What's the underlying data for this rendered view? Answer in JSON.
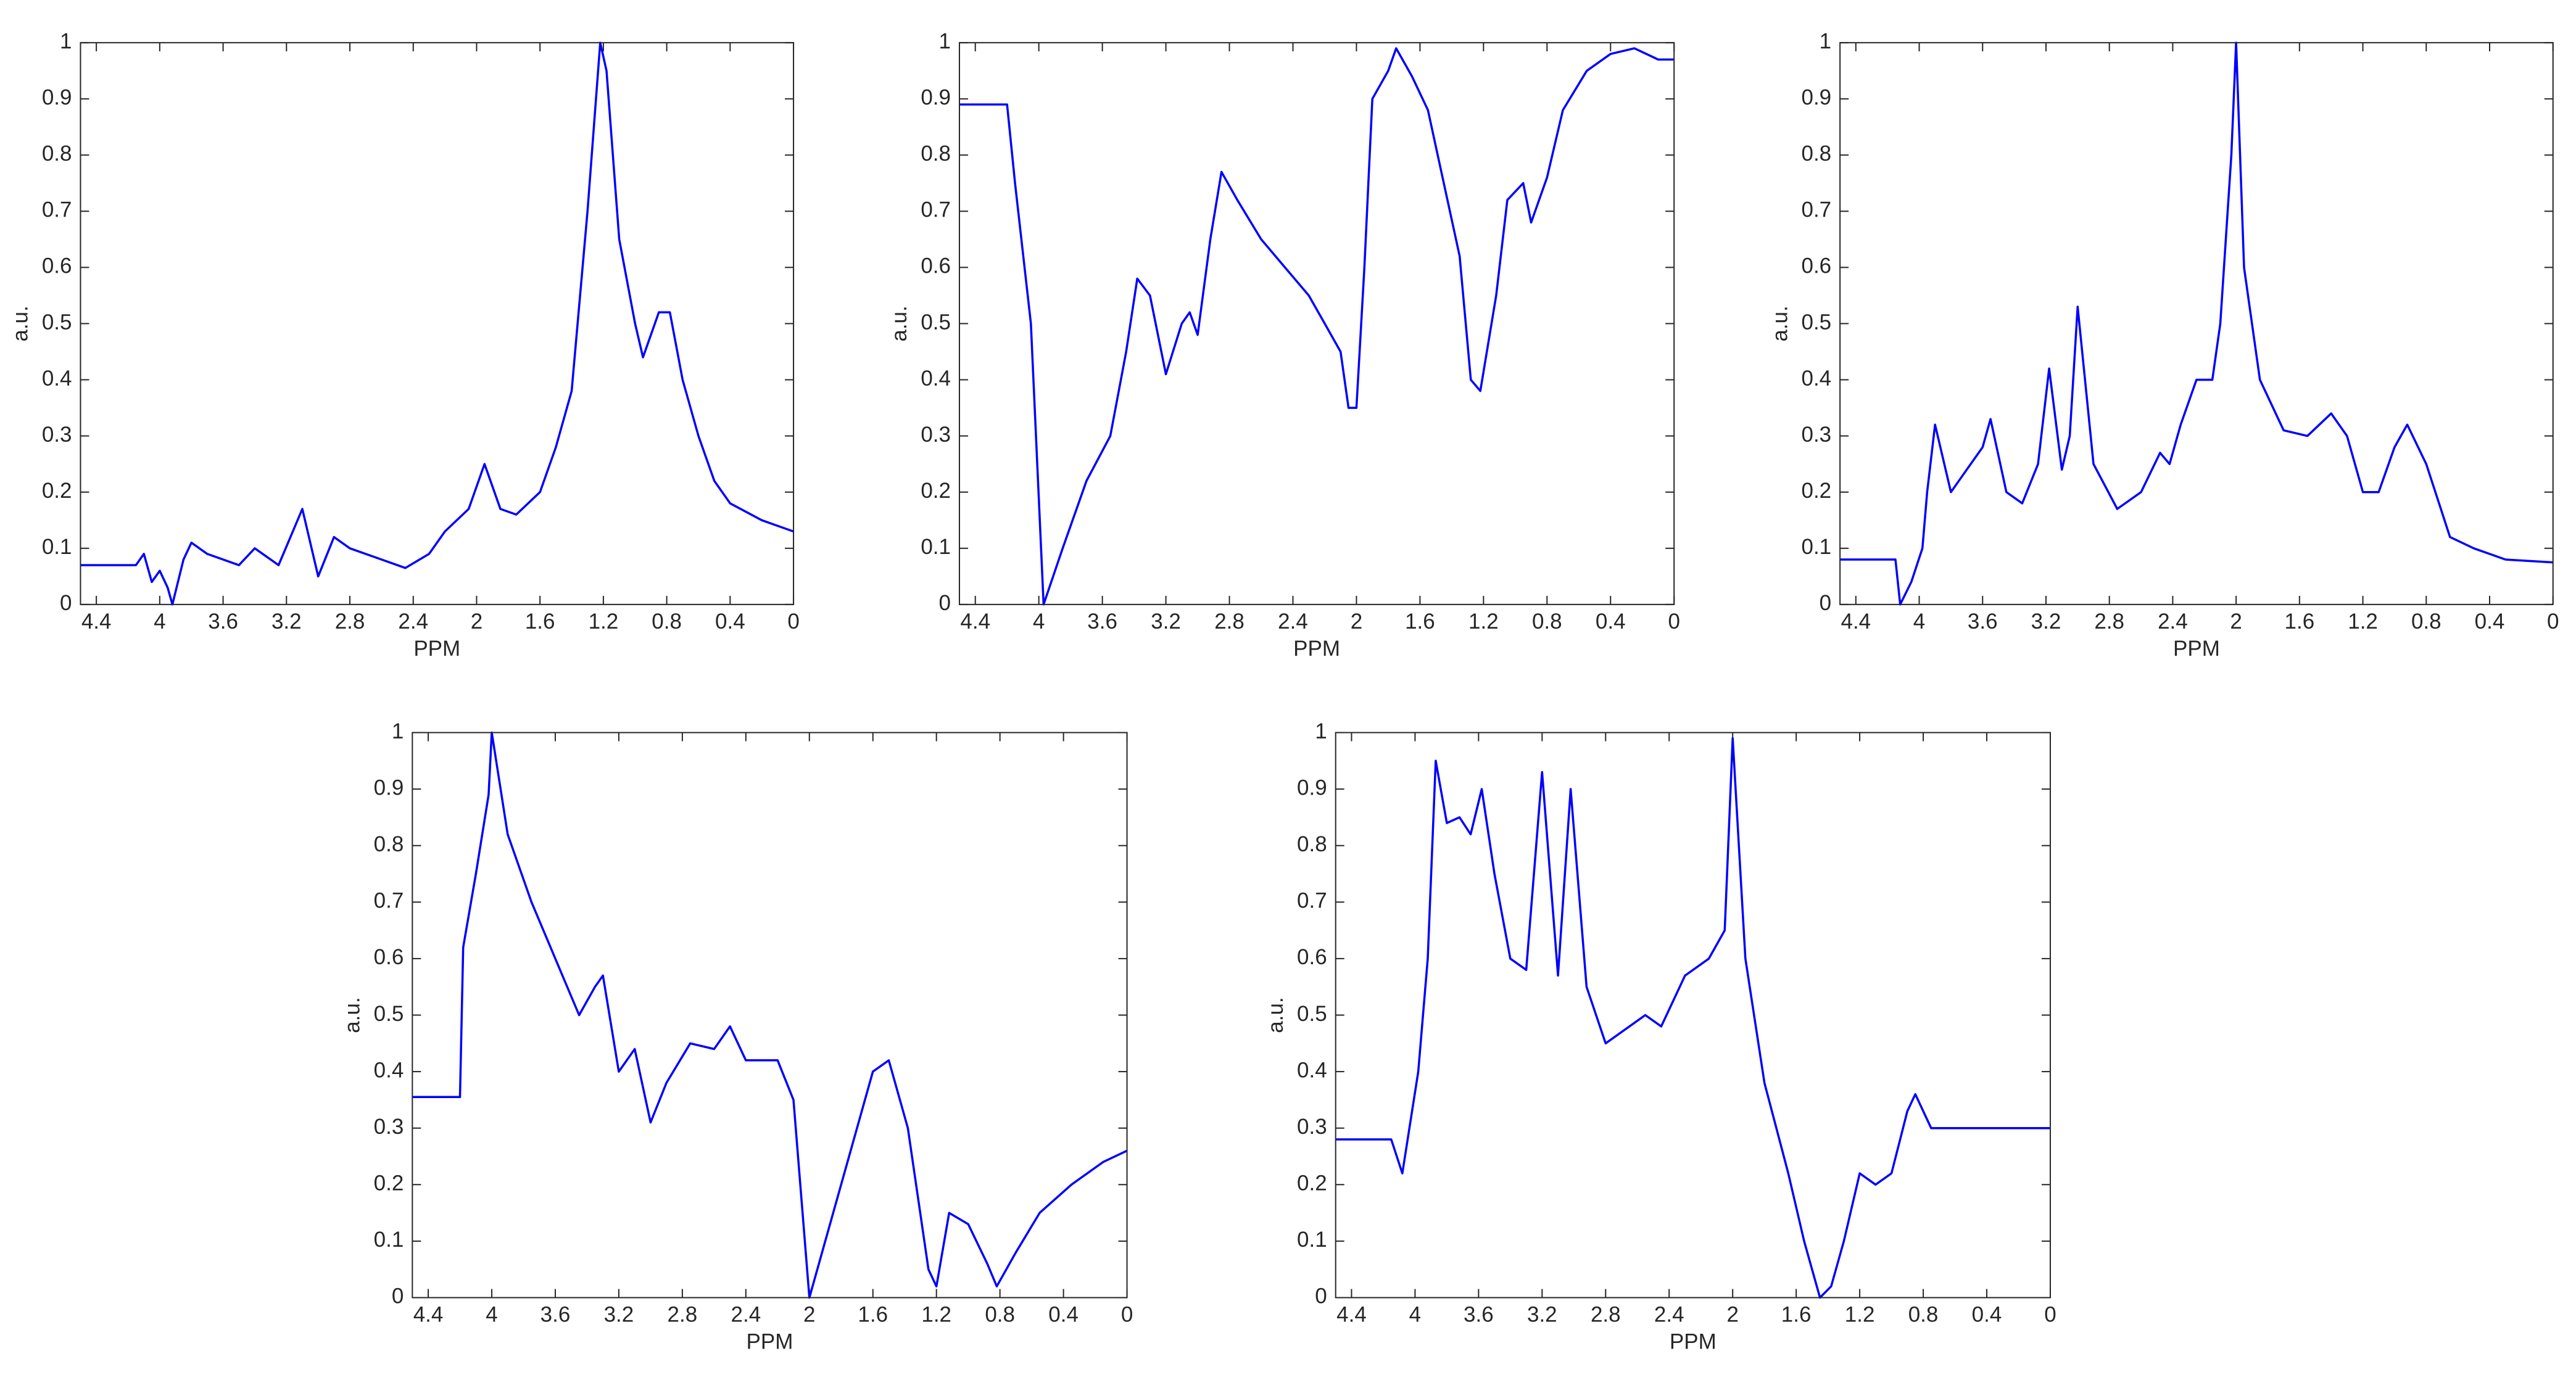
{
  "chart_data": [
    {
      "type": "line",
      "x_label": "PPM",
      "y_label": "a.u.",
      "xlim": [
        4.5,
        0
      ],
      "ylim": [
        0,
        1
      ],
      "xticks": [
        4.4,
        4,
        3.6,
        3.2,
        2.8,
        2.4,
        2,
        1.6,
        1.2,
        0.8,
        0.4,
        0
      ],
      "yticks": [
        0,
        0.1,
        0.2,
        0.3,
        0.4,
        0.5,
        0.6,
        0.7,
        0.8,
        0.9,
        1
      ],
      "series": [
        {
          "color": "#0000ff",
          "x": [
            4.5,
            4.15,
            4.1,
            4.05,
            4.0,
            3.95,
            3.92,
            3.85,
            3.8,
            3.7,
            3.5,
            3.4,
            3.25,
            3.1,
            3.0,
            2.9,
            2.8,
            2.6,
            2.45,
            2.3,
            2.2,
            2.05,
            1.95,
            1.85,
            1.75,
            1.6,
            1.5,
            1.4,
            1.3,
            1.22,
            1.18,
            1.1,
            1.0,
            0.95,
            0.85,
            0.78,
            0.7,
            0.6,
            0.5,
            0.4,
            0.2,
            0
          ],
          "values": [
            0.07,
            0.07,
            0.09,
            0.04,
            0.06,
            0.03,
            0.0,
            0.08,
            0.11,
            0.09,
            0.07,
            0.1,
            0.07,
            0.17,
            0.05,
            0.12,
            0.1,
            0.08,
            0.065,
            0.09,
            0.13,
            0.17,
            0.25,
            0.17,
            0.16,
            0.2,
            0.28,
            0.38,
            0.7,
            1.0,
            0.95,
            0.65,
            0.5,
            0.44,
            0.52,
            0.52,
            0.4,
            0.3,
            0.22,
            0.18,
            0.15,
            0.13
          ]
        }
      ]
    },
    {
      "type": "line",
      "x_label": "PPM",
      "y_label": "a.u.",
      "xlim": [
        4.5,
        0
      ],
      "ylim": [
        0,
        1
      ],
      "xticks": [
        4.4,
        4,
        3.6,
        3.2,
        2.8,
        2.4,
        2,
        1.6,
        1.2,
        0.8,
        0.4,
        0
      ],
      "yticks": [
        0,
        0.1,
        0.2,
        0.3,
        0.4,
        0.5,
        0.6,
        0.7,
        0.8,
        0.9,
        1
      ],
      "series": [
        {
          "color": "#0000ff",
          "x": [
            4.5,
            4.2,
            4.15,
            4.05,
            3.97,
            3.85,
            3.7,
            3.55,
            3.45,
            3.38,
            3.3,
            3.2,
            3.1,
            3.05,
            3.0,
            2.92,
            2.85,
            2.75,
            2.6,
            2.45,
            2.3,
            2.2,
            2.1,
            2.05,
            2.0,
            1.95,
            1.9,
            1.8,
            1.75,
            1.65,
            1.55,
            1.45,
            1.35,
            1.28,
            1.22,
            1.12,
            1.05,
            0.95,
            0.9,
            0.8,
            0.7,
            0.55,
            0.4,
            0.25,
            0.1,
            0
          ],
          "values": [
            0.89,
            0.89,
            0.75,
            0.5,
            0.0,
            0.1,
            0.22,
            0.3,
            0.45,
            0.58,
            0.55,
            0.41,
            0.5,
            0.52,
            0.48,
            0.65,
            0.77,
            0.72,
            0.65,
            0.6,
            0.55,
            0.5,
            0.45,
            0.35,
            0.35,
            0.6,
            0.9,
            0.95,
            0.99,
            0.94,
            0.88,
            0.75,
            0.62,
            0.4,
            0.38,
            0.55,
            0.72,
            0.75,
            0.68,
            0.76,
            0.88,
            0.95,
            0.98,
            0.99,
            0.97,
            0.97
          ]
        }
      ]
    },
    {
      "type": "line",
      "x_label": "PPM",
      "y_label": "a.u.",
      "xlim": [
        4.5,
        0
      ],
      "ylim": [
        0,
        1
      ],
      "xticks": [
        4.4,
        4,
        3.6,
        3.2,
        2.8,
        2.4,
        2,
        1.6,
        1.2,
        0.8,
        0.4,
        0
      ],
      "yticks": [
        0,
        0.1,
        0.2,
        0.3,
        0.4,
        0.5,
        0.6,
        0.7,
        0.8,
        0.9,
        1
      ],
      "series": [
        {
          "color": "#0000ff",
          "x": [
            4.5,
            4.15,
            4.12,
            4.05,
            3.98,
            3.95,
            3.9,
            3.8,
            3.7,
            3.6,
            3.55,
            3.45,
            3.35,
            3.25,
            3.18,
            3.1,
            3.05,
            3.0,
            2.9,
            2.75,
            2.6,
            2.48,
            2.42,
            2.35,
            2.25,
            2.15,
            2.1,
            2.03,
            2.0,
            1.95,
            1.85,
            1.7,
            1.55,
            1.4,
            1.3,
            1.2,
            1.1,
            1.0,
            0.92,
            0.8,
            0.65,
            0.5,
            0.3,
            0
          ],
          "values": [
            0.08,
            0.08,
            0.0,
            0.04,
            0.1,
            0.2,
            0.32,
            0.2,
            0.24,
            0.28,
            0.33,
            0.2,
            0.18,
            0.25,
            0.42,
            0.24,
            0.3,
            0.53,
            0.25,
            0.17,
            0.2,
            0.27,
            0.25,
            0.32,
            0.4,
            0.4,
            0.5,
            0.8,
            1.0,
            0.6,
            0.4,
            0.31,
            0.3,
            0.34,
            0.3,
            0.2,
            0.2,
            0.28,
            0.32,
            0.25,
            0.12,
            0.1,
            0.08,
            0.075
          ]
        }
      ]
    },
    {
      "type": "line",
      "x_label": "PPM",
      "y_label": "a.u.",
      "xlim": [
        4.5,
        0
      ],
      "ylim": [
        0,
        1
      ],
      "xticks": [
        4.4,
        4,
        3.6,
        3.2,
        2.8,
        2.4,
        2,
        1.6,
        1.2,
        0.8,
        0.4,
        0
      ],
      "yticks": [
        0,
        0.1,
        0.2,
        0.3,
        0.4,
        0.5,
        0.6,
        0.7,
        0.8,
        0.9,
        1
      ],
      "series": [
        {
          "color": "#0000ff",
          "x": [
            4.5,
            4.2,
            4.18,
            4.1,
            4.02,
            4.0,
            3.9,
            3.75,
            3.6,
            3.45,
            3.35,
            3.3,
            3.2,
            3.1,
            3.0,
            2.9,
            2.75,
            2.6,
            2.5,
            2.4,
            2.2,
            2.1,
            2.0,
            1.9,
            1.75,
            1.6,
            1.5,
            1.38,
            1.25,
            1.2,
            1.12,
            1.0,
            0.88,
            0.82,
            0.7,
            0.55,
            0.35,
            0.15,
            0
          ],
          "values": [
            0.355,
            0.355,
            0.62,
            0.75,
            0.89,
            1.0,
            0.82,
            0.7,
            0.6,
            0.5,
            0.55,
            0.57,
            0.4,
            0.44,
            0.31,
            0.38,
            0.45,
            0.44,
            0.48,
            0.42,
            0.42,
            0.35,
            0.0,
            0.1,
            0.25,
            0.4,
            0.42,
            0.3,
            0.05,
            0.02,
            0.15,
            0.13,
            0.06,
            0.02,
            0.08,
            0.15,
            0.2,
            0.24,
            0.26
          ]
        }
      ]
    },
    {
      "type": "line",
      "x_label": "PPM",
      "y_label": "a.u.",
      "xlim": [
        4.5,
        0
      ],
      "ylim": [
        0,
        1
      ],
      "xticks": [
        4.4,
        4,
        3.6,
        3.2,
        2.8,
        2.4,
        2,
        1.6,
        1.2,
        0.8,
        0.4,
        0
      ],
      "yticks": [
        0,
        0.1,
        0.2,
        0.3,
        0.4,
        0.5,
        0.6,
        0.7,
        0.8,
        0.9,
        1
      ],
      "series": [
        {
          "color": "#0000ff",
          "x": [
            4.5,
            4.15,
            4.08,
            3.98,
            3.92,
            3.87,
            3.8,
            3.72,
            3.65,
            3.58,
            3.5,
            3.4,
            3.3,
            3.2,
            3.1,
            3.02,
            2.92,
            2.8,
            2.65,
            2.55,
            2.45,
            2.3,
            2.15,
            2.05,
            2.0,
            1.92,
            1.8,
            1.65,
            1.55,
            1.45,
            1.38,
            1.3,
            1.2,
            1.1,
            1.0,
            0.9,
            0.85,
            0.75,
            0.5,
            0.25,
            0
          ],
          "values": [
            0.28,
            0.28,
            0.22,
            0.4,
            0.6,
            0.95,
            0.84,
            0.85,
            0.82,
            0.9,
            0.75,
            0.6,
            0.58,
            0.93,
            0.57,
            0.9,
            0.55,
            0.45,
            0.48,
            0.5,
            0.48,
            0.57,
            0.6,
            0.65,
            0.99,
            0.6,
            0.38,
            0.22,
            0.1,
            0.0,
            0.02,
            0.1,
            0.22,
            0.2,
            0.22,
            0.33,
            0.36,
            0.3,
            0.3,
            0.3,
            0.3
          ]
        }
      ]
    }
  ]
}
